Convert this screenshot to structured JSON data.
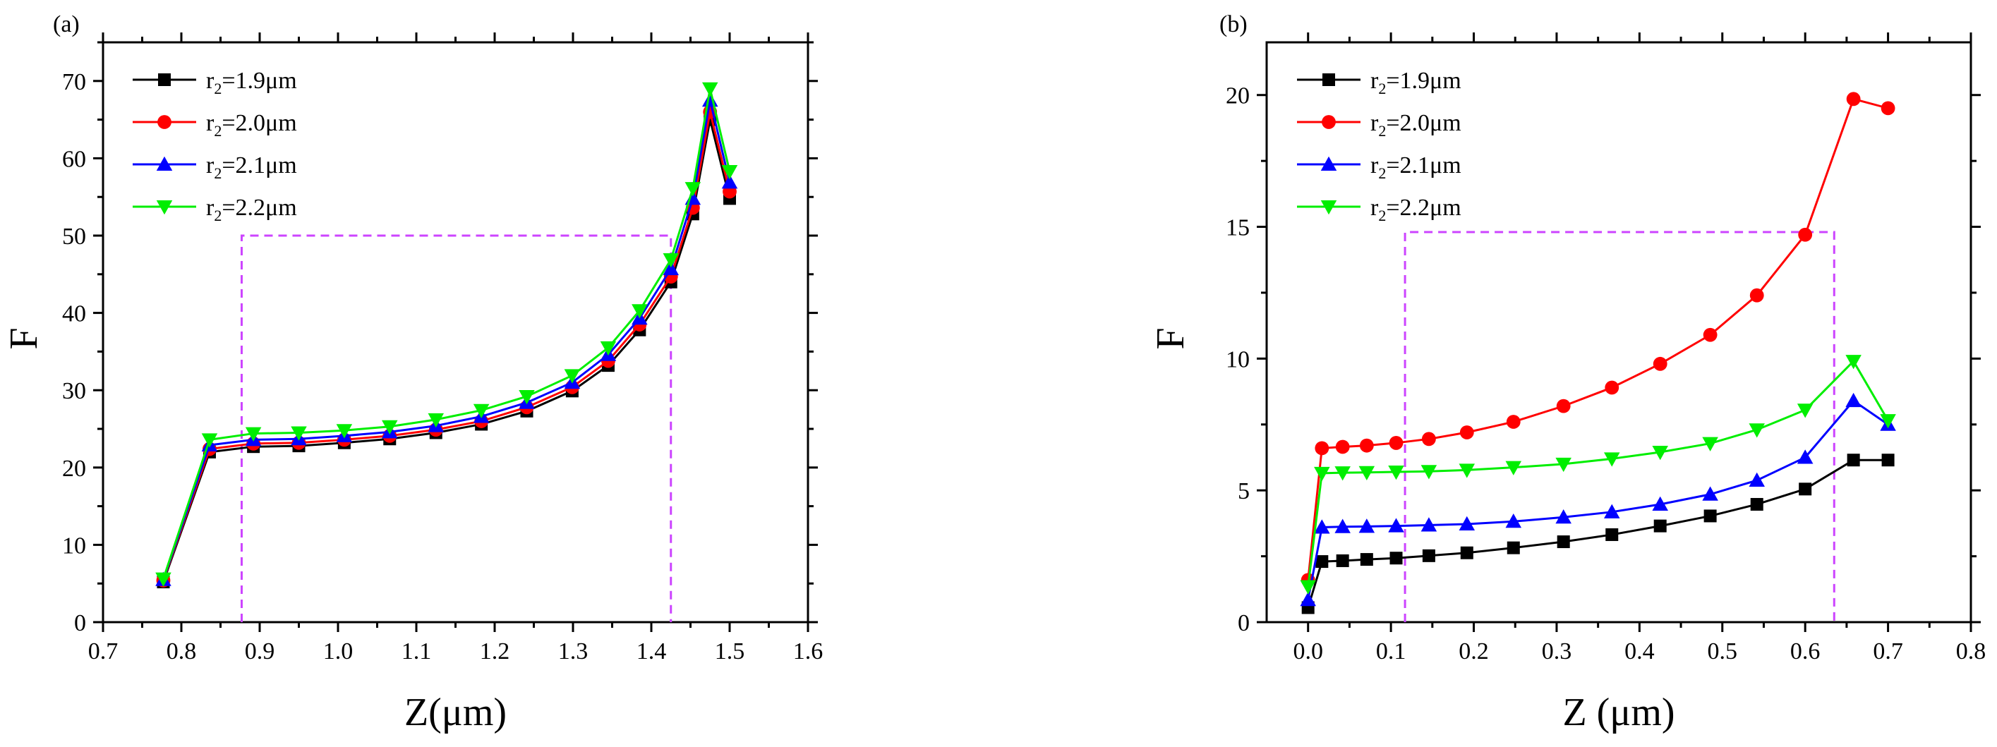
{
  "chart_data": [
    {
      "type": "line",
      "panel_label": "(a)",
      "xlabel": "Z(μm)",
      "ylabel": "F",
      "xlim": [
        0.7,
        1.6
      ],
      "ylim": [
        0,
        75
      ],
      "xticks": [
        "0.7",
        "0.8",
        "0.9",
        "1.0",
        "1.1",
        "1.2",
        "1.3",
        "1.4",
        "1.5",
        "1.6"
      ],
      "yticks": [
        "0",
        "10",
        "20",
        "30",
        "40",
        "50",
        "60",
        "70"
      ],
      "legend_position": "top-left",
      "highlight_box": {
        "x0": 0.877,
        "x1": 1.425,
        "y0": 0,
        "y1": 50,
        "color": "#cc44ff"
      },
      "x": [
        0.777,
        0.836,
        0.892,
        0.95,
        1.008,
        1.066,
        1.125,
        1.183,
        1.241,
        1.299,
        1.345,
        1.385,
        1.425,
        1.453,
        1.475,
        1.5
      ],
      "series": [
        {
          "name": "r2=1.9μm",
          "label_main": "r",
          "label_sub": "2",
          "label_rest": "=1.9μm",
          "color": "#000000",
          "marker": "square",
          "values": [
            5.2,
            22.0,
            22.7,
            22.8,
            23.2,
            23.7,
            24.5,
            25.6,
            27.3,
            29.9,
            33.2,
            37.8,
            44.0,
            52.8,
            65.0,
            54.8
          ]
        },
        {
          "name": "r2=2.0μm",
          "label_main": "r",
          "label_sub": "2",
          "label_rest": "=2.0μm",
          "color": "#ff0000",
          "marker": "circle",
          "values": [
            5.4,
            22.4,
            23.1,
            23.2,
            23.6,
            24.1,
            24.9,
            26.0,
            27.8,
            30.4,
            33.8,
            38.5,
            44.7,
            53.6,
            66.0,
            55.7
          ]
        },
        {
          "name": "r2=2.1μm",
          "label_main": "r",
          "label_sub": "2",
          "label_rest": "=2.1μm",
          "color": "#0000ff",
          "marker": "triangle-up",
          "values": [
            5.5,
            22.9,
            23.6,
            23.7,
            24.1,
            24.6,
            25.4,
            26.6,
            28.4,
            31.0,
            34.6,
            39.3,
            45.7,
            54.8,
            67.5,
            56.9
          ]
        },
        {
          "name": "r2=2.2μm",
          "label_main": "r",
          "label_sub": "2",
          "label_rest": "=2.2μm",
          "color": "#00ee00",
          "marker": "triangle-down",
          "values": [
            5.6,
            23.6,
            24.4,
            24.5,
            24.8,
            25.3,
            26.2,
            27.4,
            29.2,
            31.9,
            35.5,
            40.3,
            46.9,
            56.1,
            69.0,
            58.3
          ]
        }
      ]
    },
    {
      "type": "line",
      "panel_label": "(b)",
      "xlabel": "Z (μm)",
      "ylabel": "F",
      "xlim": [
        -0.05,
        0.8
      ],
      "ylim": [
        0,
        22
      ],
      "xticks": [
        "0.0",
        "0.1",
        "0.2",
        "0.3",
        "0.4",
        "0.5",
        "0.6",
        "0.7",
        "0.8"
      ],
      "yticks": [
        "0",
        "5",
        "10",
        "15",
        "20"
      ],
      "legend_position": "top-left",
      "highlight_box": {
        "x0": 0.117,
        "x1": 0.635,
        "y0": 0,
        "y1": 14.8,
        "color": "#cc44ff"
      },
      "x": [
        0.0,
        0.0167,
        0.0417,
        0.0708,
        0.1063,
        0.1458,
        0.1917,
        0.2479,
        0.3083,
        0.3667,
        0.425,
        0.4854,
        0.5417,
        0.6,
        0.6583,
        0.7
      ],
      "series": [
        {
          "name": "r2=1.9μm",
          "label_main": "r",
          "label_sub": "2",
          "label_rest": "=1.9μm",
          "color": "#000000",
          "marker": "square",
          "values": [
            0.55,
            2.3,
            2.33,
            2.38,
            2.43,
            2.52,
            2.63,
            2.82,
            3.05,
            3.32,
            3.65,
            4.03,
            4.47,
            5.05,
            6.15,
            6.15
          ]
        },
        {
          "name": "r2=2.0μm",
          "label_main": "r",
          "label_sub": "2",
          "label_rest": "=2.0μm",
          "color": "#ff0000",
          "marker": "circle",
          "values": [
            1.6,
            6.6,
            6.65,
            6.7,
            6.8,
            6.95,
            7.2,
            7.6,
            8.2,
            8.9,
            9.8,
            10.9,
            12.4,
            14.7,
            19.85,
            19.5
          ]
        },
        {
          "name": "r2=2.1μm",
          "label_main": "r",
          "label_sub": "2",
          "label_rest": "=2.1μm",
          "color": "#0000ff",
          "marker": "triangle-up",
          "values": [
            0.85,
            3.6,
            3.62,
            3.63,
            3.65,
            3.68,
            3.72,
            3.82,
            3.98,
            4.18,
            4.47,
            4.85,
            5.38,
            6.25,
            8.4,
            7.5
          ]
        },
        {
          "name": "r2=2.2μm",
          "label_main": "r",
          "label_sub": "2",
          "label_rest": "=2.2μm",
          "color": "#00ee00",
          "marker": "triangle-down",
          "values": [
            1.35,
            5.65,
            5.67,
            5.68,
            5.7,
            5.72,
            5.77,
            5.87,
            6.0,
            6.2,
            6.45,
            6.78,
            7.3,
            8.05,
            9.9,
            7.65
          ]
        }
      ]
    }
  ]
}
